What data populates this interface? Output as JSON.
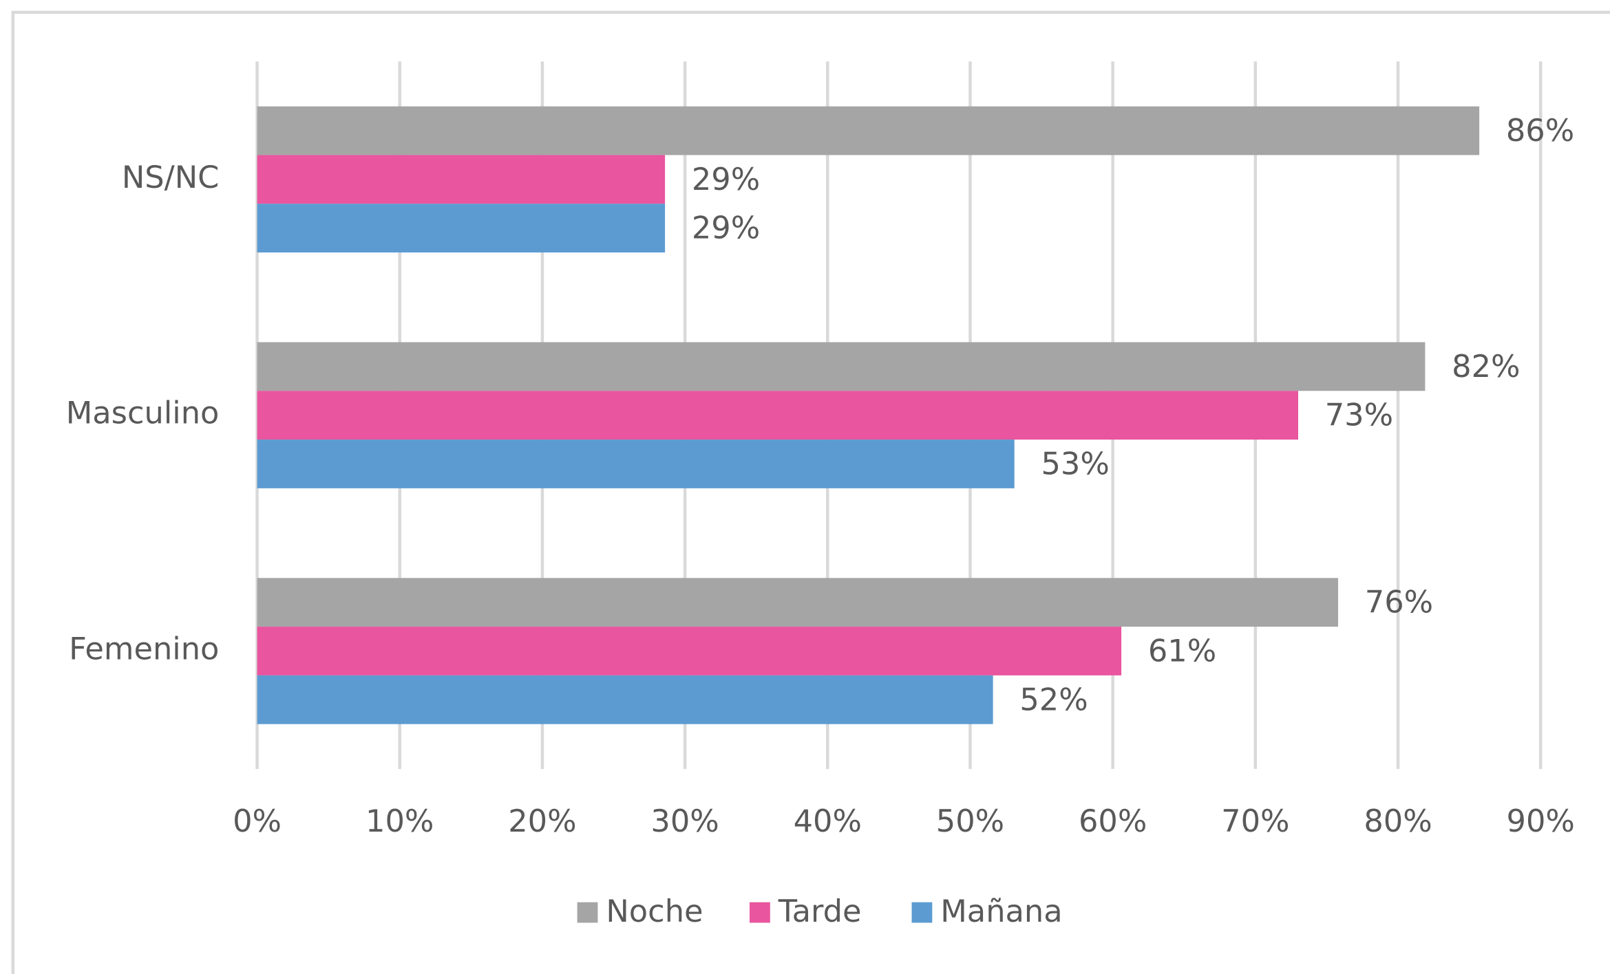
{
  "chart_data": {
    "type": "bar",
    "orientation": "horizontal",
    "categories": [
      "NS/NC",
      "Masculino",
      "Femenino"
    ],
    "series": [
      {
        "name": "Noche",
        "color": "#a5a5a5",
        "values": [
          85.7,
          81.9,
          75.8
        ],
        "value_labels": [
          "86%",
          "82%",
          "76%"
        ]
      },
      {
        "name": "Tarde",
        "color": "#e9559e",
        "values": [
          28.6,
          73.0,
          60.6
        ],
        "value_labels": [
          "29%",
          "73%",
          "61%"
        ]
      },
      {
        "name": "Mañana",
        "color": "#5b9bd1",
        "values": [
          28.6,
          53.1,
          51.6
        ],
        "value_labels": [
          "29%",
          "53%",
          "52%"
        ]
      }
    ],
    "xlim": [
      0,
      90
    ],
    "xticks": [
      {
        "value": 0,
        "label": "0%"
      },
      {
        "value": 10,
        "label": "10%"
      },
      {
        "value": 20,
        "label": "20%"
      },
      {
        "value": 30,
        "label": "30%"
      },
      {
        "value": 40,
        "label": "40%"
      },
      {
        "value": 50,
        "label": "50%"
      },
      {
        "value": 60,
        "label": "60%"
      },
      {
        "value": 70,
        "label": "70%"
      },
      {
        "value": 80,
        "label": "80%"
      },
      {
        "value": 90,
        "label": "90%"
      }
    ],
    "grid": true,
    "legend": "bottom"
  }
}
